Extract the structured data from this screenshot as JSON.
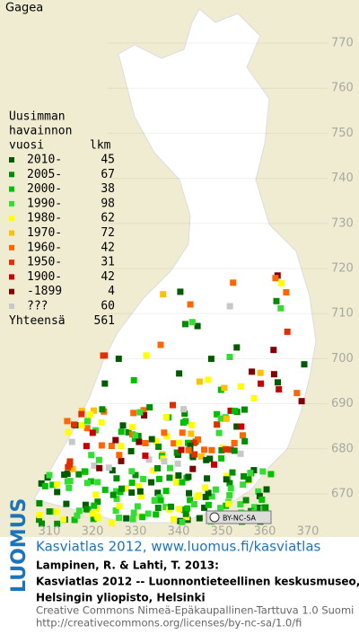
{
  "map": {
    "title": "Gagea",
    "legend": {
      "header": [
        "Uusimman",
        "havainnon",
        "vuosi"
      ],
      "count_header": "lkm",
      "rows": [
        {
          "label": "2010-",
          "count": 45,
          "color": "#005a00"
        },
        {
          "label": "2005-",
          "count": 67,
          "color": "#008c00"
        },
        {
          "label": "2000-",
          "count": 38,
          "color": "#00c000"
        },
        {
          "label": "1990-",
          "count": 98,
          "color": "#33dd33"
        },
        {
          "label": "1980-",
          "count": 62,
          "color": "#ffff00"
        },
        {
          "label": "1970-",
          "count": 72,
          "color": "#ffc000"
        },
        {
          "label": "1960-",
          "count": 42,
          "color": "#ff6600"
        },
        {
          "label": "1950-",
          "count": 31,
          "color": "#e03000"
        },
        {
          "label": "1900-",
          "count": 42,
          "color": "#c80000"
        },
        {
          "label": "-1899",
          "count": 4,
          "color": "#800000"
        },
        {
          "label": "???",
          "count": 60,
          "color": "#c8c8c8"
        }
      ],
      "total_label": "Yhteensä",
      "total": 561
    },
    "yticks": [
      770,
      760,
      750,
      740,
      730,
      720,
      710,
      700,
      690,
      680,
      670
    ],
    "xticks": [
      310,
      320,
      330,
      340,
      350,
      360,
      370
    ],
    "badge": "BY-NC-SA"
  },
  "footer": {
    "logo": "LUOMUS",
    "link": "Kasviatlas 2012, www.luomus.fi/kasviatlas",
    "citation": [
      "Lampinen, R. & Lahti, T. 2013:",
      "Kasviatlas 2012 -- Luonnontieteellinen keskusmuseo,",
      "Helsingin yliopisto, Helsinki"
    ],
    "license": [
      "Creative Commons Nimeä-Epäkaupallinen-Tarttuva 1.0 Suomi",
      "http://creativecommons.org/licenses/by-nc-sa/1.0/fi"
    ]
  }
}
